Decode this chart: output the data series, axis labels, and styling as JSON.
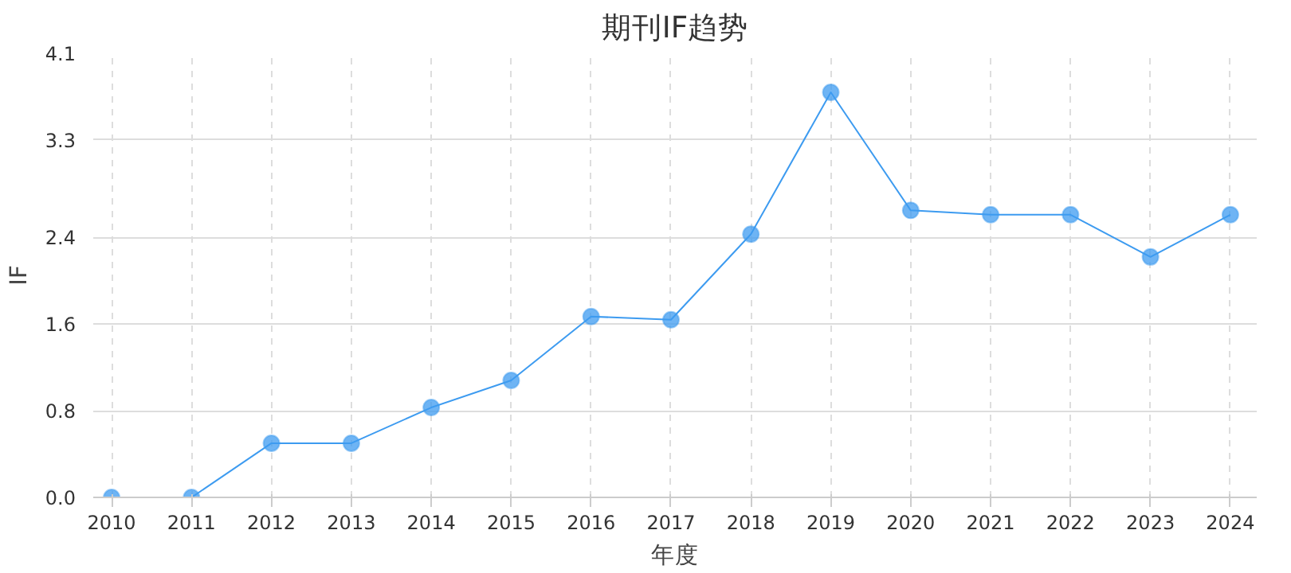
{
  "chart_data": {
    "type": "line",
    "title": "期刊IF趋势",
    "xlabel": "年度",
    "ylabel": "IF",
    "categories": [
      "2010",
      "2011",
      "2012",
      "2013",
      "2014",
      "2015",
      "2016",
      "2017",
      "2018",
      "2019",
      "2020",
      "2021",
      "2022",
      "2023",
      "2024"
    ],
    "series": [
      {
        "color": "#3d9bf0",
        "values": [
          0,
          0,
          0.5,
          0.5,
          0.83,
          1.08,
          1.67,
          1.64,
          2.43,
          3.74,
          2.65,
          2.61,
          2.61,
          2.22,
          2.61
        ]
      }
    ],
    "ylim": [
      0,
      4.1
    ],
    "yticks": [
      {
        "value": 0,
        "label": "0.0"
      },
      {
        "value": 0.8,
        "label": "0.8"
      },
      {
        "value": 1.6,
        "label": "1.6"
      },
      {
        "value": 2.4,
        "label": "2.4"
      },
      {
        "value": 3.3,
        "label": "3.3"
      },
      {
        "value": 4.1,
        "label": "4.1"
      }
    ],
    "grid": true,
    "marker": "circle",
    "line_style": "solid"
  }
}
